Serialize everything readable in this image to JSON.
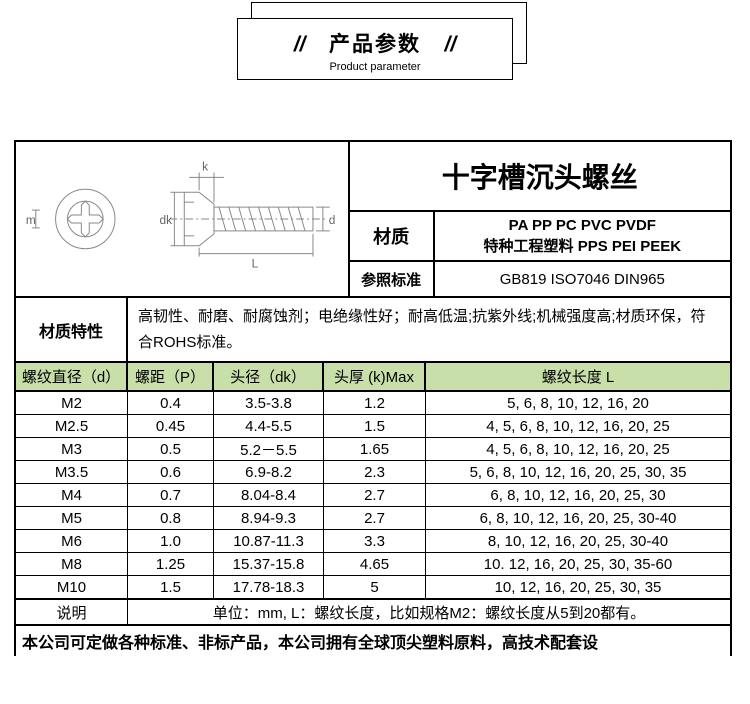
{
  "header": {
    "title_cn": "产品参数",
    "title_en": "Product parameter",
    "slash": "//"
  },
  "product": {
    "title": "十字槽沉头螺丝",
    "material_label": "材质",
    "material_line1": "PA PP PC PVC  PVDF",
    "material_line2": "特种工程塑料 PPS PEI  PEEK",
    "standard_label": "参照标准",
    "standard_value": "GB819 ISO7046 DIN965"
  },
  "properties": {
    "label": "材质特性",
    "text": "高韧性、耐磨、耐腐蚀剂；电绝缘性好；耐高低温;抗紫外线;机械强度高;材质环保，符合ROHS标准。"
  },
  "table": {
    "header_bg": "#c8dfaa",
    "columns": [
      "螺纹直径（d）",
      "螺距（P）",
      "头径（dk）",
      "头厚 (k)Max",
      "螺纹长度 L"
    ],
    "rows": [
      [
        "M2",
        "0.4",
        "3.5-3.8",
        "1.2",
        "5, 6, 8, 10, 12, 16, 20"
      ],
      [
        "M2.5",
        "0.45",
        "4.4-5.5",
        "1.5",
        "4, 5, 6, 8, 10, 12, 16, 20, 25"
      ],
      [
        "M3",
        "0.5",
        "5.2－5.5",
        "1.65",
        "4, 5, 6, 8, 10, 12, 16, 20, 25"
      ],
      [
        "M3.5",
        "0.6",
        "6.9-8.2",
        "2.3",
        "5, 6, 8, 10, 12, 16, 20, 25, 30, 35"
      ],
      [
        "M4",
        "0.7",
        "8.04-8.4",
        "2.7",
        "6, 8, 10, 12, 16, 20, 25, 30"
      ],
      [
        "M5",
        "0.8",
        "8.94-9.3",
        "2.7",
        "6, 8, 10, 12, 16, 20, 25, 30-40"
      ],
      [
        "M6",
        "1.0",
        "10.87-11.3",
        "3.3",
        "8, 10, 12, 16, 20, 25, 30-40"
      ],
      [
        "M8",
        "1.25",
        "15.37-15.8",
        "4.65",
        "10. 12, 16, 20, 25, 30, 35-60"
      ],
      [
        "M10",
        "1.5",
        "17.78-18.3",
        "5",
        "10, 12, 16, 20, 25, 30, 35"
      ]
    ],
    "note_label": "说明",
    "note_text": "单位：mm, L：螺纹长度，比如规格M2：螺纹长度从5到20都有。"
  },
  "footer": "本公司可定做各种标准、非标产品，本公司拥有全球顶尖塑料原料，高技术配套设",
  "diagram": {
    "labels": {
      "k": "k",
      "dk": "dk",
      "m": "m",
      "d": "d",
      "L": "L"
    },
    "stroke": "#888888"
  }
}
